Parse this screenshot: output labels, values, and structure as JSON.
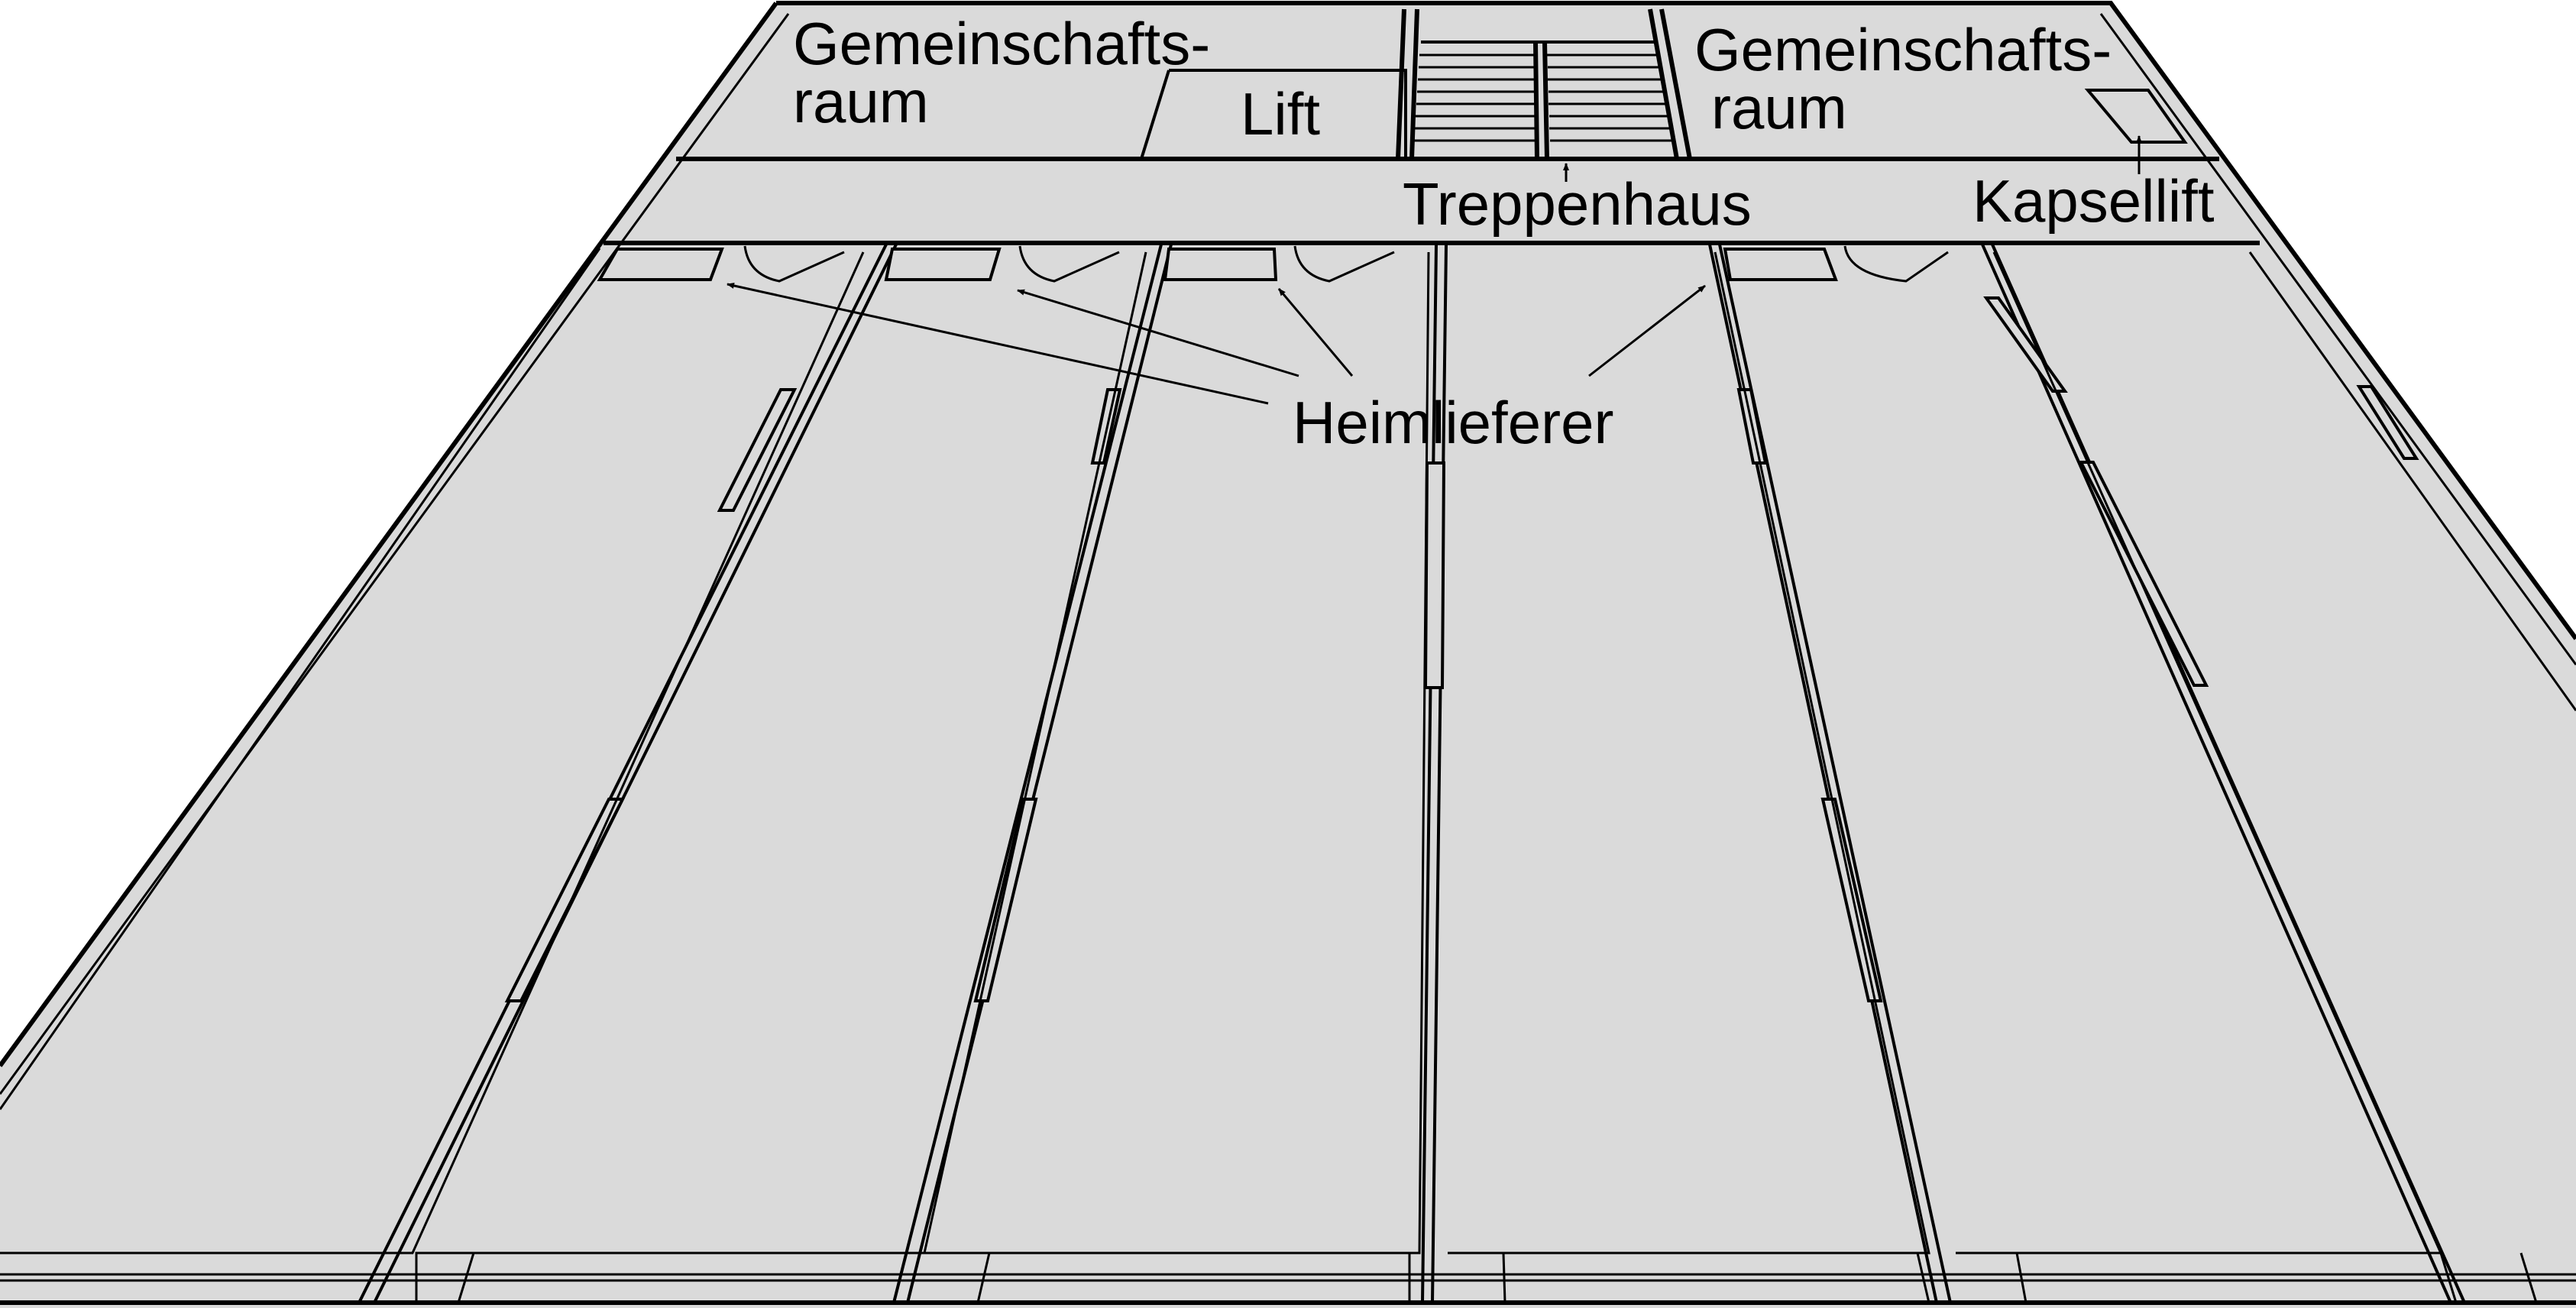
{
  "labels": {
    "common_room_left_line1": "Gemeinschafts-",
    "common_room_left_line2": "raum",
    "lift": "Lift",
    "common_room_right_line1": "Gemeinschafts-",
    "common_room_right_line2": "raum",
    "stairwell": "Treppenhaus",
    "capsule_lift": "Kapsellift",
    "home_delivery": "Heimlieferer"
  }
}
